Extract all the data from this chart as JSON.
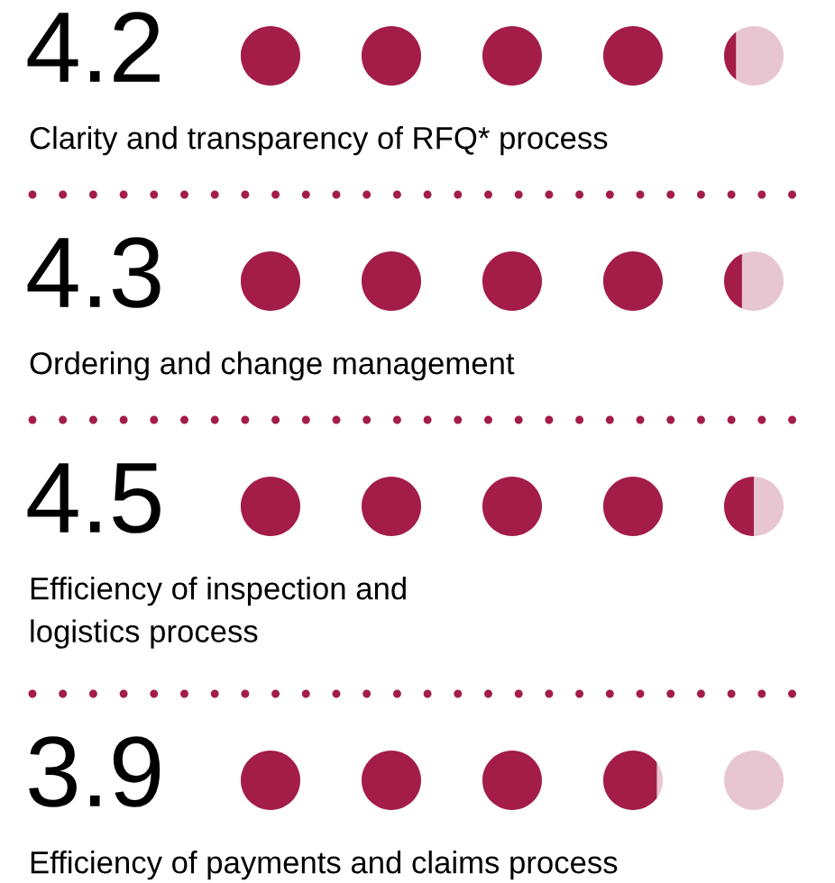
{
  "chart_data": {
    "type": "other",
    "categories": [
      "Clarity and transparency of RFQ* process",
      "Ordering and change management",
      "Efficiency of inspection and\nlogistics process",
      "Efficiency of payments and claims process"
    ],
    "series": [
      {
        "color": "#a31d48",
        "values": [
          4.2,
          4.3,
          4.5,
          3.9
        ]
      }
    ],
    "data_labels": true
  }
}
